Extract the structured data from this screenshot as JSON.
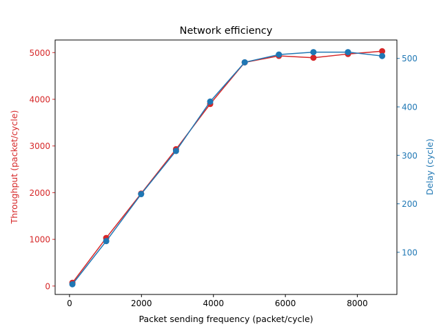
{
  "chart_data": {
    "type": "line",
    "title": "Network efficiency",
    "xlabel": "Packet sending frequency (packet/cycle)",
    "xlim": [
      -400,
      9100
    ],
    "xticks": [
      0,
      2000,
      4000,
      6000,
      8000
    ],
    "x": [
      80,
      1020,
      1990,
      2960,
      3910,
      4870,
      5820,
      6780,
      7740,
      8690
    ],
    "left_axis": {
      "label": "Throughput (packet/cycle)",
      "color": "#d62728",
      "ylim": [
        -180,
        5270
      ],
      "ticks": [
        0,
        1000,
        2000,
        3000,
        4000,
        5000
      ]
    },
    "right_axis": {
      "label": "Delay (cycle)",
      "color": "#1f77b4",
      "ylim": [
        13,
        538
      ],
      "ticks": [
        100,
        200,
        300,
        400,
        500
      ]
    },
    "series": [
      {
        "axis": "left",
        "color": "#d62728",
        "values": [
          70,
          1030,
          1980,
          2930,
          3900,
          4790,
          4930,
          4890,
          4970,
          5030
        ]
      },
      {
        "axis": "right",
        "color": "#1f77b4",
        "values": [
          34,
          123,
          220,
          309,
          411,
          492,
          508,
          513,
          513,
          505
        ]
      }
    ],
    "grid": false,
    "legend": false
  }
}
